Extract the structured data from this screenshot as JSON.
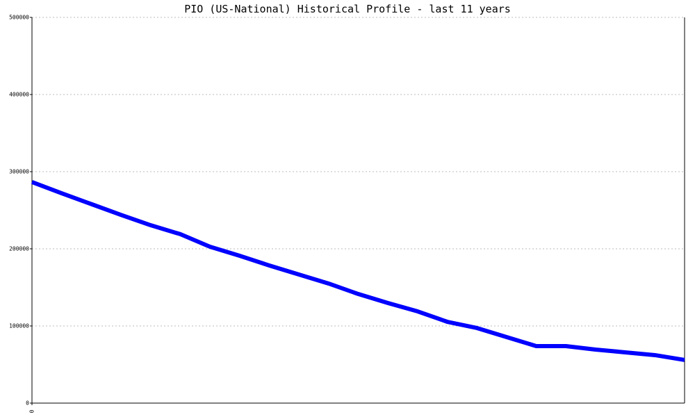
{
  "chart_data": {
    "type": "line",
    "title": "PIO (US-National) Historical Profile - last 11 years",
    "x": [
      0,
      1,
      2,
      3,
      4,
      5,
      6,
      7,
      8,
      9,
      10,
      11,
      12,
      13,
      14,
      15,
      16,
      17,
      18,
      19,
      20,
      21,
      22
    ],
    "values": [
      286500,
      272000,
      258000,
      244000,
      230600,
      219000,
      202700,
      191000,
      178400,
      166700,
      155000,
      141400,
      129700,
      118900,
      105400,
      97300,
      85600,
      73900,
      73900,
      69400,
      65800,
      62200,
      55900
    ],
    "color": "#0000ff",
    "xlim": [
      0,
      22
    ],
    "xticks": [
      0
    ],
    "ylim": [
      0,
      500000
    ],
    "yticks": [
      0,
      100000,
      200000,
      300000,
      400000,
      500000
    ],
    "grid": true
  }
}
